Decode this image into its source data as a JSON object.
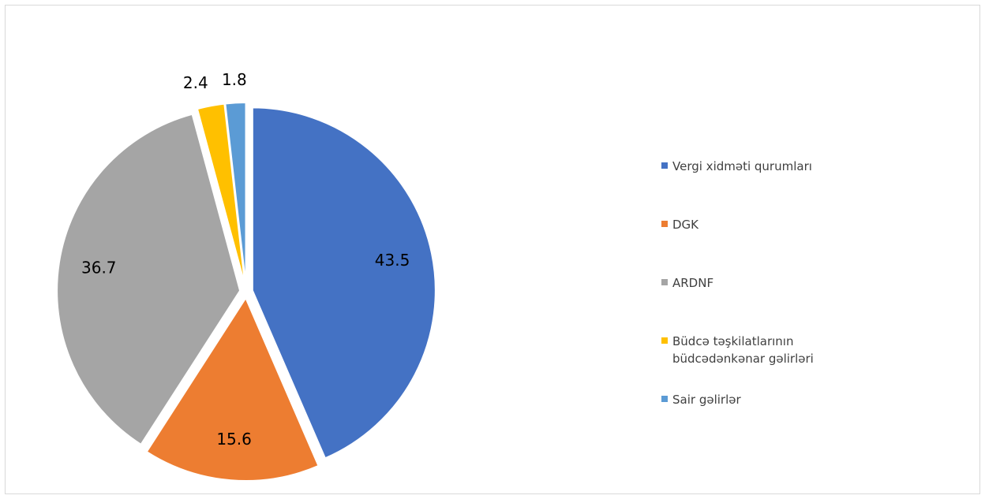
{
  "chart_data": {
    "type": "pie",
    "categories": [
      "Vergi xidməti qurumları",
      "DGK",
      "ARDNF",
      "Büdcə təşkilatlarının büdcədənkənar gəlirləri",
      "Sair gəlirlər"
    ],
    "values": [
      43.5,
      15.6,
      36.7,
      2.4,
      1.8
    ],
    "colors": [
      "#4472c4",
      "#ed7d31",
      "#a5a5a5",
      "#ffc000",
      "#5b9bd5"
    ],
    "legend": "right"
  }
}
